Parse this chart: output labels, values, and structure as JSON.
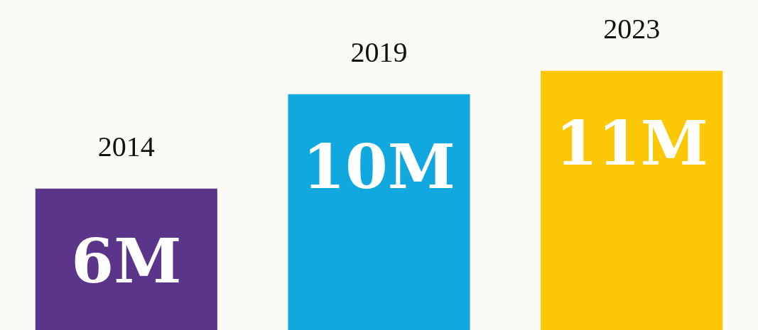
{
  "chart_data": {
    "type": "bar",
    "categories": [
      "2014",
      "2019",
      "2023"
    ],
    "values": [
      6,
      10,
      11
    ],
    "value_labels": [
      "6M",
      "10M",
      "11M"
    ],
    "colors": [
      "#5a358a",
      "#11a8e0",
      "#fcc705"
    ]
  }
}
